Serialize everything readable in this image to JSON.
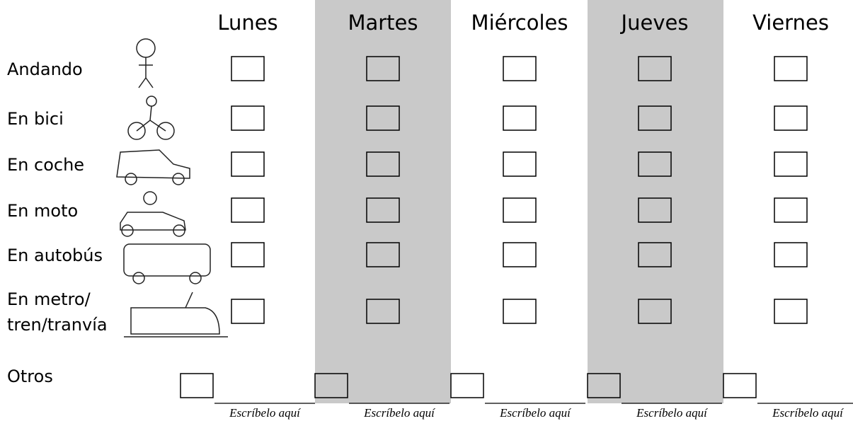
{
  "header": {
    "days": [
      "Lunes",
      "Martes",
      "Miércoles",
      "Jueves",
      "Viernes"
    ]
  },
  "rows": [
    [
      "Andando"
    ],
    [
      "En bici"
    ],
    [
      "En coche"
    ],
    [
      "En moto"
    ],
    [
      "En autobús"
    ],
    [
      "En metro/",
      "tren/tranvía"
    ]
  ],
  "other": {
    "label": "Otros",
    "hint": "Escríbelo aquí"
  }
}
